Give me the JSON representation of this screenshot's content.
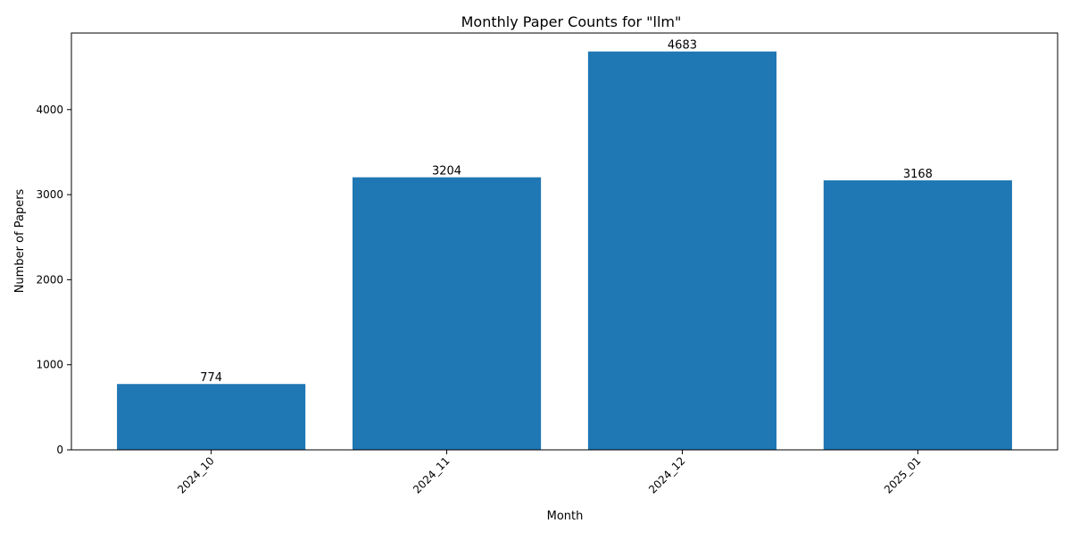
{
  "chart_data": {
    "type": "bar",
    "title": "Monthly Paper Counts for \"llm\"",
    "xlabel": "Month",
    "ylabel": "Number of Papers",
    "categories": [
      "2024_10",
      "2024_11",
      "2024_12",
      "2025_01"
    ],
    "values": [
      774,
      3204,
      4683,
      3168
    ],
    "ylim": [
      0,
      4900
    ],
    "yticks": [
      0,
      1000,
      2000,
      3000,
      4000
    ],
    "bar_color": "#1f77b4",
    "grid": false,
    "legend": "none"
  }
}
